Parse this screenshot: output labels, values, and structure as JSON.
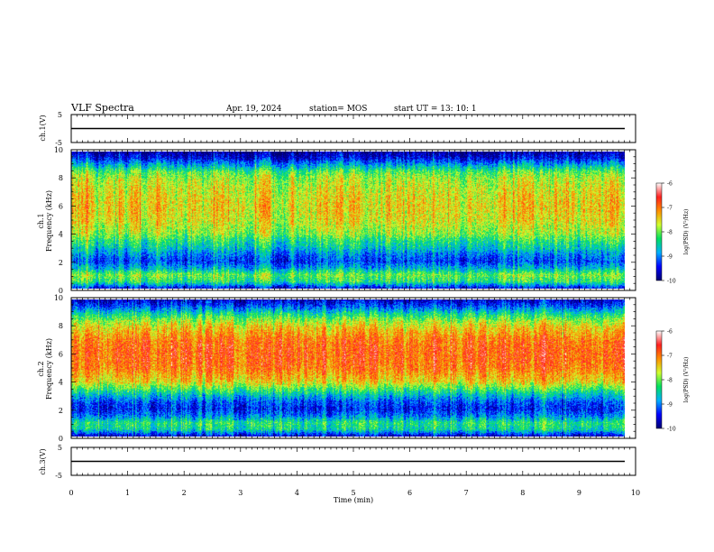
{
  "header": {
    "title": "VLF Spectra",
    "date": "Apr. 19, 2024",
    "station": "station= MOS",
    "start": "start  UT  =   13: 10: 1"
  },
  "colors": {
    "spectrum": [
      "#000070",
      "#0000ff",
      "#00b0ff",
      "#00e060",
      "#d0ff30",
      "#ff9000",
      "#ff2020",
      "#ffffff"
    ],
    "background": "#ffffff",
    "axis": "#000000"
  },
  "chart_data": [
    {
      "type": "line",
      "name": "ch1-waveform",
      "ylabel": "ch.1(V)",
      "ylim": [
        -5,
        5
      ],
      "yticks": [
        "5",
        "-5"
      ],
      "xlim": [
        0,
        10
      ],
      "level": 0
    },
    {
      "type": "heatmap",
      "name": "ch1-spectrogram",
      "ylabel_top": "ch.1",
      "ylabel": "Frequency  (kHz)",
      "ylim": [
        0,
        10
      ],
      "yticks": [
        "0",
        "2",
        "4",
        "6",
        "8",
        "10"
      ],
      "xlim": [
        0,
        9.8
      ],
      "colorbar": {
        "label": "log(PSD) (V²/Hz)",
        "ticks": [
          "-6",
          "-7",
          "-8",
          "-9",
          "-10"
        ],
        "range": [
          -10,
          -6
        ]
      },
      "profile_kHz": [
        0,
        0.5,
        1,
        1.5,
        2,
        2.5,
        3,
        3.5,
        4,
        5,
        6,
        7,
        8,
        8.5,
        9,
        9.5,
        10
      ],
      "profile_log_psd": [
        -9.6,
        -8.3,
        -8.0,
        -8.8,
        -9.3,
        -9.0,
        -8.6,
        -8.3,
        -7.9,
        -7.6,
        -7.5,
        -7.6,
        -7.8,
        -8.1,
        -8.8,
        -9.5,
        -9.9
      ]
    },
    {
      "type": "heatmap",
      "name": "ch2-spectrogram",
      "ylabel_top": "ch.2",
      "ylabel": "Frequency  (kHz)",
      "ylim": [
        0,
        10
      ],
      "yticks": [
        "0",
        "2",
        "4",
        "6",
        "8",
        "10"
      ],
      "xlim": [
        0,
        9.8
      ],
      "colorbar": {
        "label": "log(PSD) (V²/Hz)",
        "ticks": [
          "-6",
          "-7",
          "-8",
          "-9",
          "-10"
        ],
        "range": [
          -10,
          -6
        ]
      },
      "profile_kHz": [
        0,
        0.5,
        1,
        1.5,
        2,
        2.5,
        3,
        3.5,
        4,
        5,
        6,
        7,
        8,
        8.5,
        9,
        9.5,
        10
      ],
      "profile_log_psd": [
        -9.7,
        -8.5,
        -8.3,
        -9.0,
        -9.4,
        -9.2,
        -8.7,
        -8.1,
        -7.5,
        -7.0,
        -6.9,
        -7.0,
        -7.5,
        -7.9,
        -8.5,
        -9.2,
        -9.7
      ]
    },
    {
      "type": "line",
      "name": "ch3-waveform",
      "ylabel": "ch.3(V)",
      "ylim": [
        -5,
        5
      ],
      "yticks": [
        "5",
        "-5"
      ],
      "xlim": [
        0,
        10
      ],
      "level": 0
    }
  ],
  "xaxis": {
    "label": "Time  (min)",
    "ticks": [
      "0",
      "1",
      "2",
      "3",
      "4",
      "5",
      "6",
      "7",
      "8",
      "9",
      "10"
    ],
    "range": [
      0,
      10
    ]
  }
}
